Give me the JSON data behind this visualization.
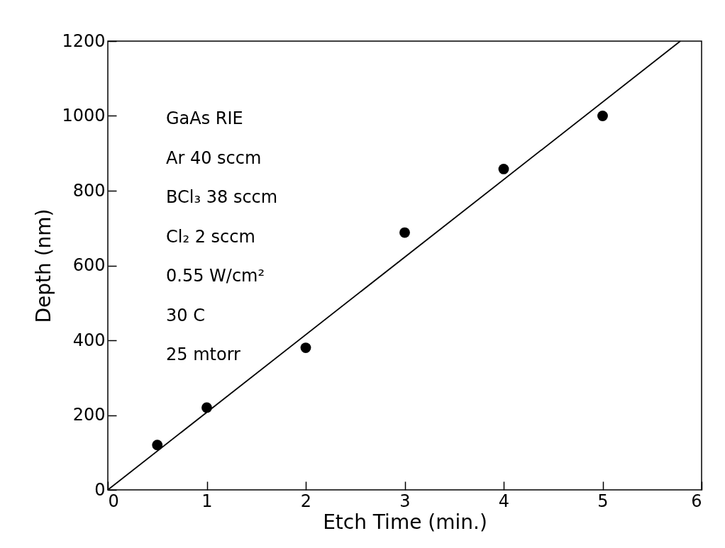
{
  "chart_data": {
    "type": "scatter",
    "xlabel": "Etch Time (min.)",
    "ylabel": "Depth (nm)",
    "xlim": [
      0,
      6
    ],
    "xticks": [
      0,
      1,
      2,
      3,
      4,
      5,
      6
    ],
    "ylim": [
      0,
      1200
    ],
    "yticks": [
      0,
      200,
      400,
      600,
      800,
      1000,
      1200
    ],
    "grid": false,
    "marker": "circle",
    "series": [
      {
        "color": "#000000",
        "x": [
          0.5,
          1,
          2,
          3,
          4,
          5
        ],
        "values": [
          120,
          220,
          380,
          688,
          858,
          1000
        ]
      },
      {
        "type": "line",
        "color": "#000000",
        "marker": "none",
        "line_style": "solid",
        "x": [
          0,
          5.785
        ],
        "values": [
          0,
          1200
        ]
      }
    ],
    "annotations": [
      "GaAs RIE",
      "Ar 40 sccm",
      "BCl₃ 38 sccm",
      "Cl₂  2 sccm",
      "0.55 W/cm²",
      "30 C",
      "25 mtorr"
    ]
  }
}
